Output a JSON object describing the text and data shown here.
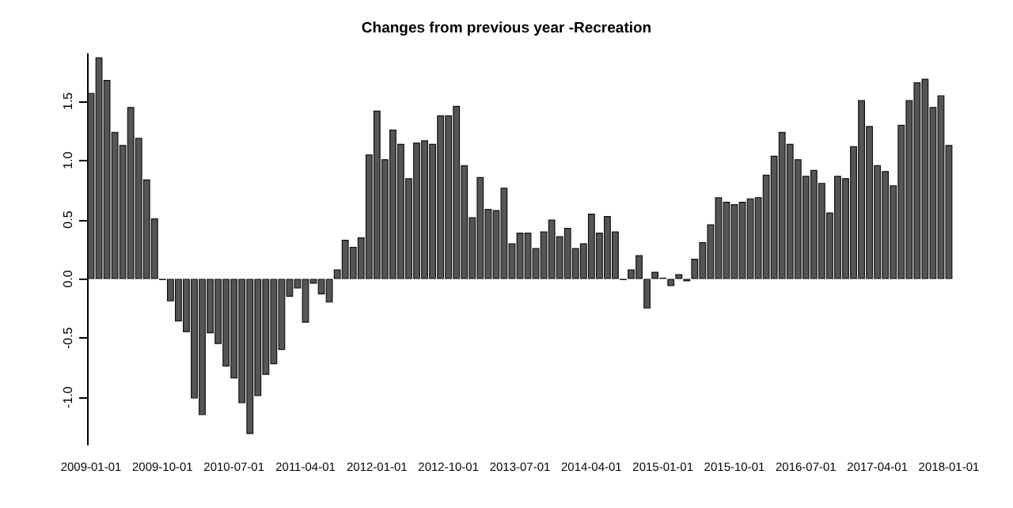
{
  "chart_data": {
    "type": "bar",
    "title": "Changes from previous year -Recreation",
    "color": "#555555",
    "categories": [
      "2009-01-01",
      null,
      null,
      null,
      null,
      null,
      null,
      null,
      null,
      "2009-10-01",
      null,
      null,
      null,
      null,
      null,
      null,
      null,
      null,
      "2010-07-01",
      null,
      null,
      null,
      null,
      null,
      null,
      null,
      null,
      "2011-04-01",
      null,
      null,
      null,
      null,
      null,
      null,
      null,
      null,
      "2012-01-01",
      null,
      null,
      null,
      null,
      null,
      null,
      null,
      null,
      "2012-10-01",
      null,
      null,
      null,
      null,
      null,
      null,
      null,
      null,
      "2013-07-01",
      null,
      null,
      null,
      null,
      null,
      null,
      null,
      null,
      "2014-04-01",
      null,
      null,
      null,
      null,
      null,
      null,
      null,
      null,
      "2015-01-01",
      null,
      null,
      null,
      null,
      null,
      null,
      null,
      null,
      "2015-10-01",
      null,
      null,
      null,
      null,
      null,
      null,
      null,
      null,
      "2016-07-01",
      null,
      null,
      null,
      null,
      null,
      null,
      null,
      null,
      "2017-04-01",
      null,
      null,
      null,
      null,
      null,
      null,
      null,
      null,
      "2018-01-01"
    ],
    "values": [
      1.57,
      1.87,
      1.68,
      1.24,
      1.13,
      1.45,
      1.19,
      0.84,
      0.51,
      -0.01,
      -0.19,
      -0.36,
      -0.45,
      -1.01,
      -1.15,
      -0.46,
      -0.55,
      -0.74,
      -0.84,
      -1.05,
      -1.31,
      -0.99,
      -0.81,
      -0.72,
      -0.6,
      -0.15,
      -0.08,
      -0.37,
      -0.04,
      -0.13,
      -0.2,
      0.08,
      0.33,
      0.27,
      0.35,
      1.05,
      1.42,
      1.01,
      1.26,
      1.14,
      0.85,
      1.15,
      1.17,
      1.14,
      1.38,
      1.38,
      1.46,
      0.96,
      0.52,
      0.86,
      0.59,
      0.58,
      0.77,
      0.3,
      0.39,
      0.39,
      0.26,
      0.4,
      0.5,
      0.36,
      0.43,
      0.26,
      0.3,
      0.55,
      0.39,
      0.53,
      0.4,
      -0.01,
      0.08,
      0.2,
      -0.25,
      0.06,
      0.01,
      -0.06,
      0.04,
      -0.02,
      0.17,
      0.31,
      0.46,
      0.69,
      0.65,
      0.63,
      0.65,
      0.68,
      0.69,
      0.88,
      1.04,
      1.24,
      1.14,
      1.01,
      0.87,
      0.92,
      0.81,
      0.56,
      0.87,
      0.85,
      1.12,
      1.51,
      1.29,
      0.96,
      0.91,
      0.79,
      1.3,
      1.51,
      1.66,
      1.69,
      1.45,
      1.55,
      1.13
    ],
    "ylim": [
      -1.4,
      1.9
    ],
    "yticks": [
      {
        "value": -1,
        "label": "-1.0"
      },
      {
        "value": -0.5,
        "label": "-0.5"
      },
      {
        "value": 0,
        "label": "0.0"
      },
      {
        "value": 0.5,
        "label": "0.5"
      },
      {
        "value": 1,
        "label": "1.0"
      },
      {
        "value": 1.5,
        "label": "1.5"
      }
    ],
    "grid": false
  }
}
